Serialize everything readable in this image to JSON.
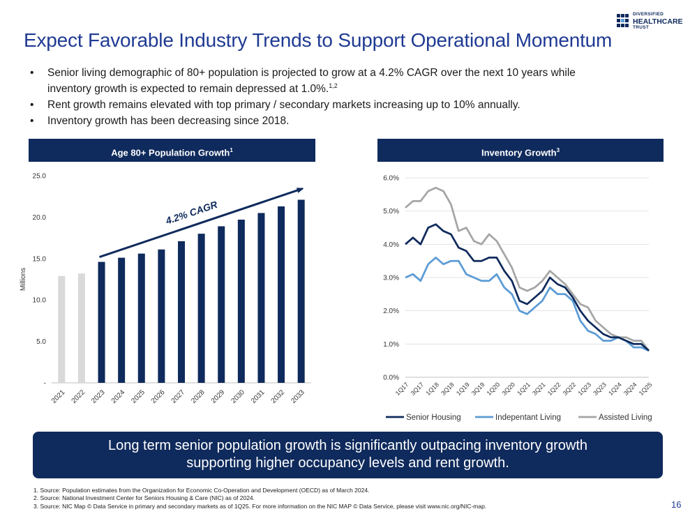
{
  "logo": {
    "line1": "DIVERSIFIED",
    "line2": "HEALTHCARE",
    "line3": "TRUST"
  },
  "title": "Expect Favorable Industry Trends to Support Operational Momentum",
  "bullets": [
    {
      "text": "Senior living demographic of 80+ population is projected to grow at a 4.2% CAGR over the next 10 years while",
      "text2": "inventory growth is expected to remain depressed at 1.0%.",
      "sup": "1,2"
    },
    {
      "text": "Rent growth remains elevated with top primary / secondary markets increasing up to 10% annually."
    },
    {
      "text": "Inventory growth has been decreasing since 2018."
    }
  ],
  "left_panel": {
    "title": "Age 80+ Population Growth",
    "sup": "1"
  },
  "right_panel": {
    "title": "Inventory Growth",
    "sup": "3"
  },
  "colors": {
    "navy": "#0f2a5c",
    "title_blue": "#1f3a93",
    "gray_bar": "#d9d9d9",
    "light_blue": "#5b9bd5",
    "gray_line": "#a5a5a5"
  },
  "chart_data": [
    {
      "type": "bar",
      "ylabel": "Millions",
      "ylim": [
        0,
        25
      ],
      "ytick_labels": [
        "-",
        "5.0",
        "10.0",
        "15.0",
        "20.0",
        "25.0"
      ],
      "categories": [
        "2021",
        "2022",
        "2023",
        "2024",
        "2025",
        "2026",
        "2027",
        "2028",
        "2029",
        "2030",
        "2031",
        "2032",
        "2033"
      ],
      "values": [
        12.9,
        13.2,
        14.6,
        15.1,
        15.6,
        16.1,
        17.1,
        18.0,
        18.9,
        19.7,
        20.5,
        21.3,
        22.1
      ],
      "bar_colors": [
        "#d9d9d9",
        "#d9d9d9",
        "#0f2a5c",
        "#0f2a5c",
        "#0f2a5c",
        "#0f2a5c",
        "#0f2a5c",
        "#0f2a5c",
        "#0f2a5c",
        "#0f2a5c",
        "#0f2a5c",
        "#0f2a5c",
        "#0f2a5c"
      ],
      "annotation": "4.2% CAGR"
    },
    {
      "type": "line",
      "ylim": [
        0,
        6
      ],
      "ytick_labels": [
        "0.0%",
        "1.0%",
        "2.0%",
        "3.0%",
        "4.0%",
        "5.0%",
        "6.0%"
      ],
      "x": [
        "1Q17",
        "2Q17",
        "3Q17",
        "4Q17",
        "1Q18",
        "2Q18",
        "3Q18",
        "4Q18",
        "1Q19",
        "2Q19",
        "3Q19",
        "4Q19",
        "1Q20",
        "2Q20",
        "3Q20",
        "4Q20",
        "1Q21",
        "2Q21",
        "3Q21",
        "4Q21",
        "1Q22",
        "2Q22",
        "3Q22",
        "4Q22",
        "1Q23",
        "2Q23",
        "3Q23",
        "4Q23",
        "1Q24",
        "2Q24",
        "3Q24",
        "4Q24",
        "1Q25"
      ],
      "x_tick_labels": [
        "1Q17",
        "3Q17",
        "1Q18",
        "3Q18",
        "1Q19",
        "3Q19",
        "1Q20",
        "3Q20",
        "1Q21",
        "3Q21",
        "1Q22",
        "3Q22",
        "1Q23",
        "3Q23",
        "1Q24",
        "3Q24",
        "1Q25"
      ],
      "legend": "bottom",
      "series": [
        {
          "name": "Senior Housing",
          "color": "#0f2a5c",
          "values": [
            4.0,
            4.2,
            4.0,
            4.5,
            4.6,
            4.4,
            4.3,
            3.9,
            3.8,
            3.5,
            3.5,
            3.6,
            3.6,
            3.2,
            2.9,
            2.3,
            2.2,
            2.4,
            2.6,
            3.0,
            2.8,
            2.7,
            2.4,
            2.0,
            1.7,
            1.5,
            1.3,
            1.2,
            1.2,
            1.1,
            1.0,
            1.0,
            0.8
          ]
        },
        {
          "name": "Indepentant Living",
          "color": "#5b9bd5",
          "values": [
            3.0,
            3.1,
            2.9,
            3.4,
            3.6,
            3.4,
            3.5,
            3.5,
            3.1,
            3.0,
            2.9,
            2.9,
            3.1,
            2.7,
            2.5,
            2.0,
            1.9,
            2.1,
            2.3,
            2.7,
            2.5,
            2.5,
            2.3,
            1.7,
            1.4,
            1.3,
            1.1,
            1.1,
            1.2,
            1.1,
            0.9,
            0.9,
            0.8
          ]
        },
        {
          "name": "Assisted Living",
          "color": "#a5a5a5",
          "values": [
            5.1,
            5.3,
            5.3,
            5.6,
            5.7,
            5.6,
            5.2,
            4.4,
            4.5,
            4.1,
            4.0,
            4.3,
            4.1,
            3.7,
            3.3,
            2.7,
            2.6,
            2.7,
            2.9,
            3.2,
            3.0,
            2.8,
            2.5,
            2.2,
            2.1,
            1.7,
            1.5,
            1.3,
            1.2,
            1.2,
            1.1,
            1.1,
            0.8
          ]
        }
      ]
    }
  ],
  "callout": {
    "line1": "Long term senior population growth is significantly outpacing inventory growth",
    "line2": "supporting higher occupancy levels and rent growth."
  },
  "footnotes": [
    "1.  Source: Population estimates from the Organization for Economic Co-Operation and Development (OECD) as of March 2024.",
    "2.  Source: National Investment Center for Seniors Housing & Care (NIC) as of  2024.",
    "3.  Source: NIC Map © Data Service in primary and secondary markets as of 1Q25.  For more information on the NIC MAP © Data Service, please visit www.nic.org/NIC-map."
  ],
  "page_number": "16"
}
